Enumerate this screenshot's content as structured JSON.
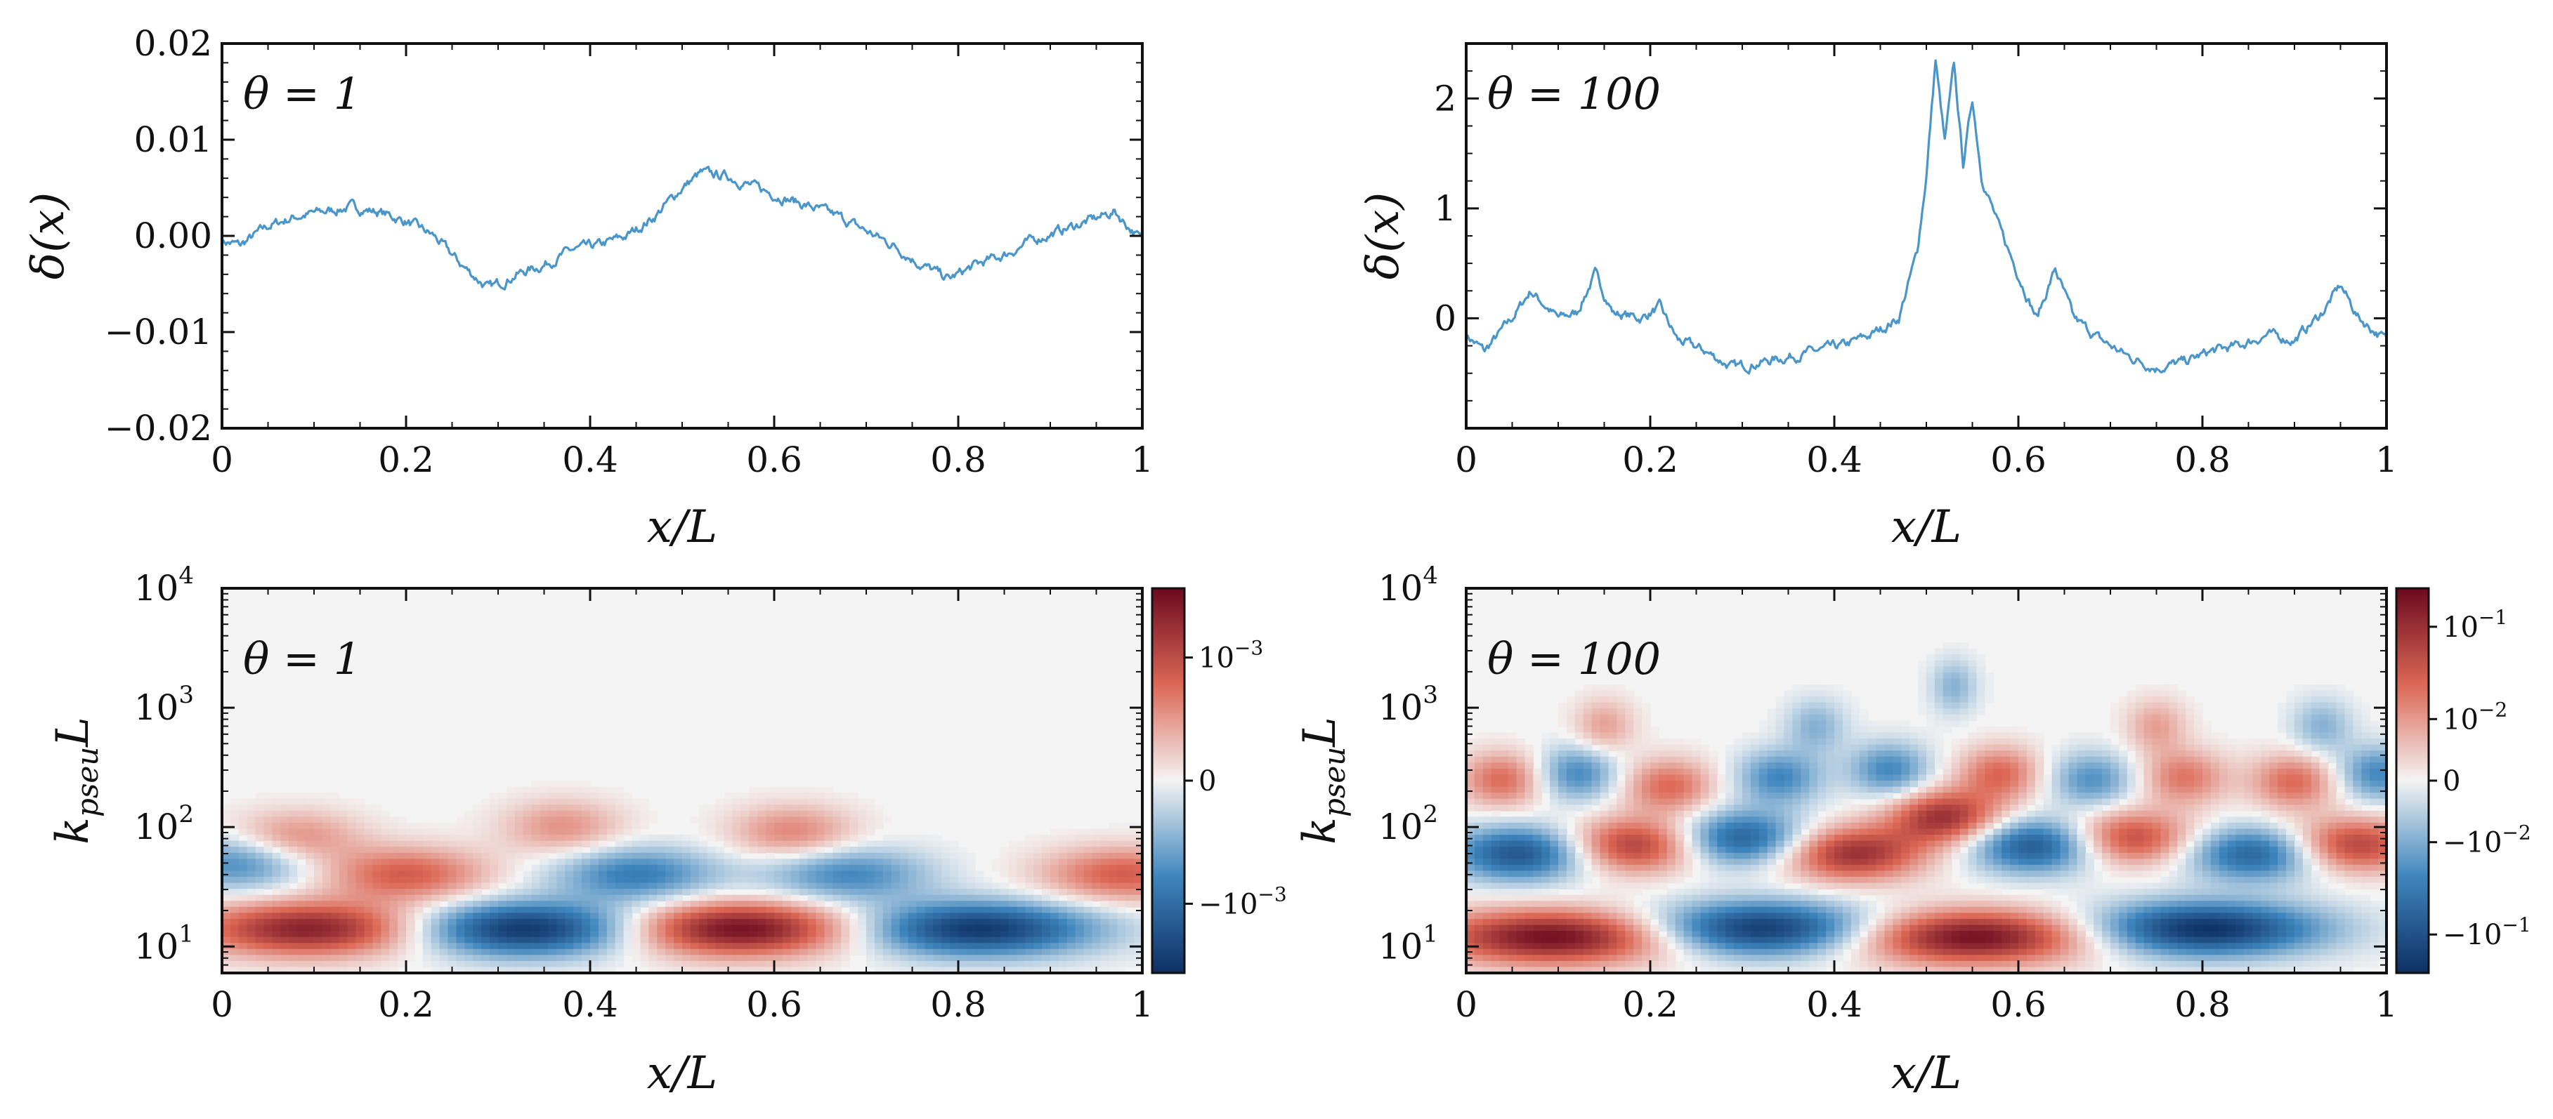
{
  "colors": {
    "line": "#4a95c9",
    "neg_dark": "#0d2f63",
    "neg_mid": "#3e85bd",
    "neutral": "#f4f4f4",
    "pos_mid": "#dc6755",
    "pos_dark": "#6a0a1f"
  },
  "chart_data": [
    {
      "id": "top-left",
      "type": "line",
      "annotation": "θ = 1",
      "xlabel": "x/L",
      "ylabel": "δ(x)",
      "xlim": [
        0,
        1
      ],
      "ylim": [
        -0.02,
        0.02
      ],
      "xticks": [
        "0",
        "0.2",
        "0.4",
        "0.6",
        "0.8",
        "1"
      ],
      "yticks": [
        "−0.02",
        "−0.01",
        "0.00",
        "0.01",
        "0.02"
      ],
      "x": [
        0,
        0.02,
        0.05,
        0.08,
        0.11,
        0.14,
        0.17,
        0.2,
        0.23,
        0.26,
        0.29,
        0.32,
        0.35,
        0.38,
        0.41,
        0.44,
        0.47,
        0.5,
        0.52,
        0.55,
        0.58,
        0.61,
        0.64,
        0.67,
        0.7,
        0.73,
        0.76,
        0.79,
        0.82,
        0.85,
        0.88,
        0.91,
        0.94,
        0.97,
        1
      ],
      "y": [
        -0.0005,
        -0.001,
        0.001,
        0.002,
        0.0025,
        0.003,
        0.0025,
        0.0015,
        0.0,
        -0.003,
        -0.0055,
        -0.004,
        -0.003,
        -0.0015,
        -0.001,
        0.0,
        0.002,
        0.005,
        0.0065,
        0.0062,
        0.005,
        0.004,
        0.003,
        0.002,
        0.0005,
        -0.001,
        -0.003,
        -0.0045,
        -0.003,
        -0.002,
        -0.0005,
        0.0005,
        0.0015,
        0.0025,
        -0.0005
      ]
    },
    {
      "id": "top-right",
      "type": "line",
      "annotation": "θ = 100",
      "xlabel": "x/L",
      "ylabel": "δ(x)",
      "xlim": [
        0,
        1
      ],
      "ylim": [
        -1,
        2.5
      ],
      "xticks": [
        "0",
        "0.2",
        "0.4",
        "0.6",
        "0.8",
        "1"
      ],
      "yticks": [
        "0",
        "1",
        "2"
      ],
      "x": [
        0,
        0.02,
        0.05,
        0.07,
        0.1,
        0.12,
        0.14,
        0.16,
        0.19,
        0.21,
        0.23,
        0.26,
        0.29,
        0.32,
        0.35,
        0.38,
        0.41,
        0.44,
        0.47,
        0.49,
        0.5,
        0.51,
        0.52,
        0.53,
        0.54,
        0.55,
        0.56,
        0.58,
        0.6,
        0.62,
        0.64,
        0.66,
        0.69,
        0.72,
        0.75,
        0.78,
        0.81,
        0.84,
        0.87,
        0.9,
        0.93,
        0.95,
        0.97,
        1
      ],
      "y": [
        -0.15,
        -0.3,
        0.0,
        0.25,
        0.0,
        0.05,
        0.4,
        0.05,
        0.0,
        0.1,
        -0.2,
        -0.3,
        -0.45,
        -0.4,
        -0.35,
        -0.3,
        -0.25,
        -0.15,
        0.0,
        0.6,
        1.3,
        2.35,
        1.6,
        2.3,
        1.4,
        2.0,
        1.3,
        0.8,
        0.4,
        0.0,
        0.45,
        0.0,
        -0.2,
        -0.35,
        -0.45,
        -0.4,
        -0.3,
        -0.25,
        -0.15,
        -0.2,
        0.05,
        0.3,
        0.0,
        -0.2
      ]
    },
    {
      "id": "bottom-left",
      "type": "heatmap",
      "annotation": "θ = 1",
      "xlabel": "x/L",
      "ylabel": "kpseuL",
      "ylabel_main": "k",
      "ylabel_sub": "pseu",
      "ylabel_tail": "L",
      "xlim": [
        0,
        1
      ],
      "ylim": [
        6,
        10000
      ],
      "yscale": "log",
      "xticks": [
        "0",
        "0.2",
        "0.4",
        "0.6",
        "0.8",
        "1"
      ],
      "yticks": [
        "10",
        "10",
        "10",
        "10"
      ],
      "ytick_exponents": [
        "1",
        "2",
        "3",
        "4"
      ],
      "colorbar_ticks": [
        "10",
        "0",
        "−10"
      ],
      "colorbar_exponents": [
        "−3",
        "",
        "−3"
      ],
      "blobs": [
        {
          "x": 0.1,
          "k": 14,
          "amp": 0.9,
          "sign": 1
        },
        {
          "x": 0.33,
          "k": 14,
          "amp": 1.0,
          "sign": -1
        },
        {
          "x": 0.56,
          "k": 14,
          "amp": 1.0,
          "sign": 1
        },
        {
          "x": 0.82,
          "k": 14,
          "amp": 0.95,
          "sign": -1
        },
        {
          "x": 0.02,
          "k": 50,
          "amp": 0.5,
          "sign": -1
        },
        {
          "x": 0.2,
          "k": 40,
          "amp": 0.55,
          "sign": 1
        },
        {
          "x": 0.45,
          "k": 40,
          "amp": 0.55,
          "sign": -1
        },
        {
          "x": 0.68,
          "k": 40,
          "amp": 0.5,
          "sign": -1
        },
        {
          "x": 0.98,
          "k": 40,
          "amp": 0.55,
          "sign": 1
        },
        {
          "x": 0.08,
          "k": 80,
          "amp": 0.4,
          "sign": 1
        },
        {
          "x": 0.37,
          "k": 100,
          "amp": 0.35,
          "sign": 1
        },
        {
          "x": 0.62,
          "k": 90,
          "amp": 0.4,
          "sign": 1
        }
      ]
    },
    {
      "id": "bottom-right",
      "type": "heatmap",
      "annotation": "θ = 100",
      "xlabel": "x/L",
      "ylabel": "kpseuL",
      "ylabel_main": "k",
      "ylabel_sub": "pseu",
      "ylabel_tail": "L",
      "xlim": [
        0,
        1
      ],
      "ylim": [
        6,
        10000
      ],
      "yscale": "log",
      "xticks": [
        "0",
        "0.2",
        "0.4",
        "0.6",
        "0.8",
        "1"
      ],
      "yticks": [
        "10",
        "10",
        "10",
        "10"
      ],
      "ytick_exponents": [
        "1",
        "2",
        "3",
        "4"
      ],
      "colorbar_ticks": [
        "10",
        "10",
        "0",
        "−10",
        "−10"
      ],
      "colorbar_exponents": [
        "−1",
        "−2",
        "",
        "−2",
        "−1"
      ],
      "blobs": [
        {
          "x": 0.1,
          "k": 12,
          "amp": 1.0,
          "sign": 1
        },
        {
          "x": 0.32,
          "k": 14,
          "amp": 1.0,
          "sign": -1
        },
        {
          "x": 0.55,
          "k": 12,
          "amp": 1.0,
          "sign": 1
        },
        {
          "x": 0.8,
          "k": 14,
          "amp": 1.0,
          "sign": -1
        },
        {
          "x": 0.06,
          "k": 60,
          "amp": 0.8,
          "sign": -1
        },
        {
          "x": 0.18,
          "k": 70,
          "amp": 0.75,
          "sign": 1
        },
        {
          "x": 0.3,
          "k": 80,
          "amp": 0.75,
          "sign": -1
        },
        {
          "x": 0.42,
          "k": 60,
          "amp": 0.8,
          "sign": 1
        },
        {
          "x": 0.52,
          "k": 120,
          "amp": 0.8,
          "sign": 1
        },
        {
          "x": 0.62,
          "k": 70,
          "amp": 0.8,
          "sign": -1
        },
        {
          "x": 0.72,
          "k": 80,
          "amp": 0.7,
          "sign": 1
        },
        {
          "x": 0.86,
          "k": 60,
          "amp": 0.75,
          "sign": -1
        },
        {
          "x": 0.96,
          "k": 70,
          "amp": 0.75,
          "sign": 1
        },
        {
          "x": 0.04,
          "k": 250,
          "amp": 0.5,
          "sign": 1
        },
        {
          "x": 0.12,
          "k": 280,
          "amp": 0.5,
          "sign": -1
        },
        {
          "x": 0.22,
          "k": 220,
          "amp": 0.5,
          "sign": 1
        },
        {
          "x": 0.34,
          "k": 260,
          "amp": 0.5,
          "sign": -1
        },
        {
          "x": 0.46,
          "k": 300,
          "amp": 0.5,
          "sign": -1
        },
        {
          "x": 0.58,
          "k": 280,
          "amp": 0.5,
          "sign": 1
        },
        {
          "x": 0.68,
          "k": 250,
          "amp": 0.45,
          "sign": -1
        },
        {
          "x": 0.78,
          "k": 260,
          "amp": 0.45,
          "sign": 1
        },
        {
          "x": 0.9,
          "k": 240,
          "amp": 0.5,
          "sign": 1
        },
        {
          "x": 0.99,
          "k": 280,
          "amp": 0.5,
          "sign": -1
        },
        {
          "x": 0.15,
          "k": 700,
          "amp": 0.3,
          "sign": 1
        },
        {
          "x": 0.38,
          "k": 700,
          "amp": 0.3,
          "sign": -1
        },
        {
          "x": 0.53,
          "k": 1500,
          "amp": 0.3,
          "sign": -1
        },
        {
          "x": 0.75,
          "k": 700,
          "amp": 0.3,
          "sign": 1
        },
        {
          "x": 0.93,
          "k": 700,
          "amp": 0.3,
          "sign": -1
        }
      ]
    }
  ]
}
